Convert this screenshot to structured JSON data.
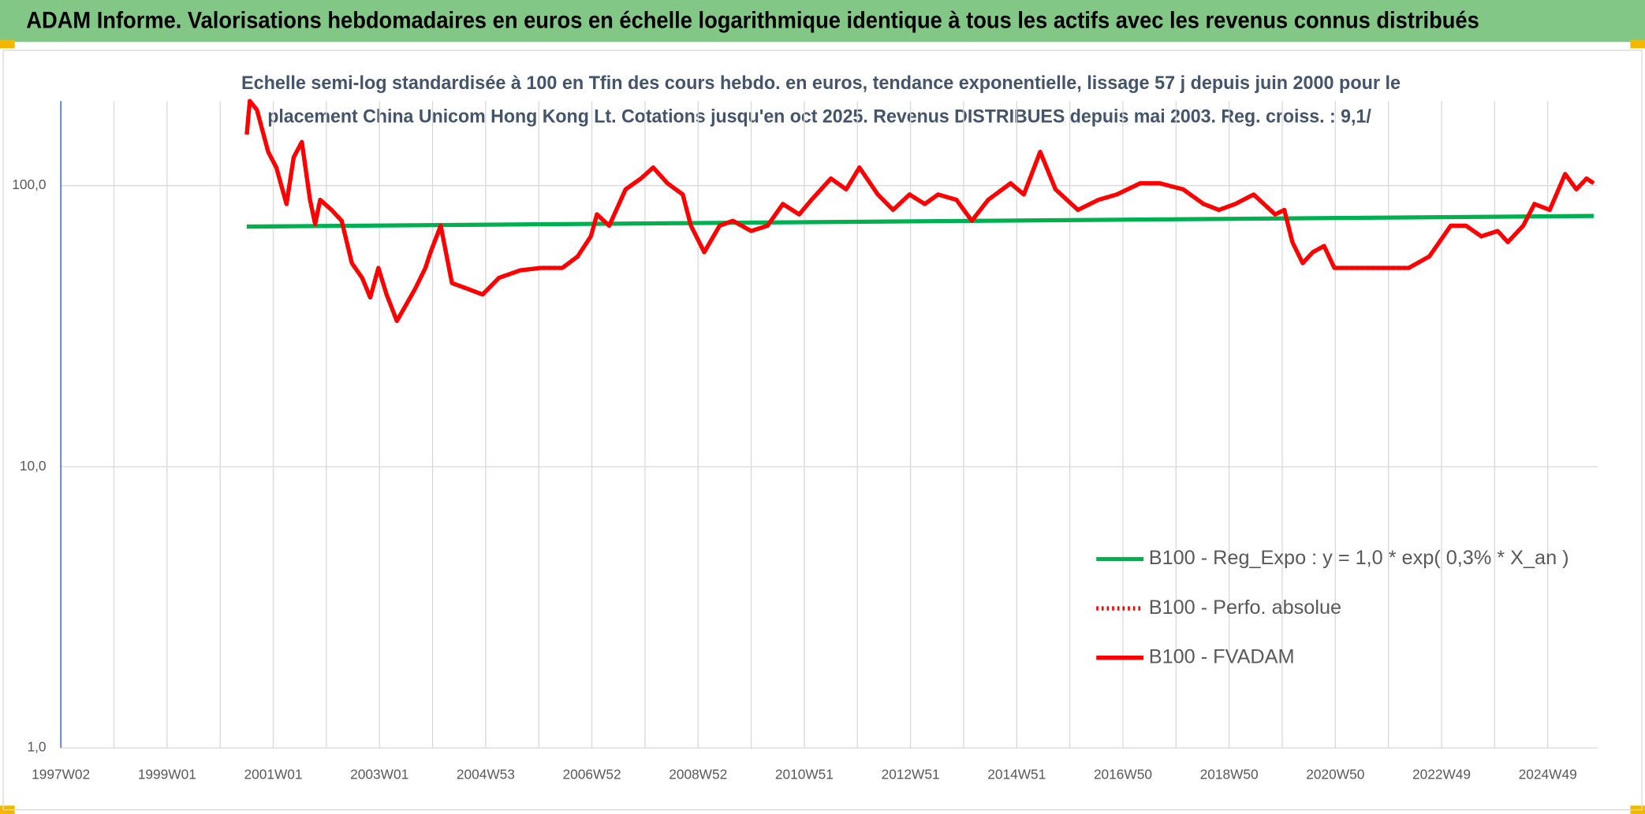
{
  "chart_data": {
    "type": "line",
    "title": "ADAM Informe. Valorisations hebdomadaires en euros en échelle logarithmique identique à tous les actifs avec les revenus connus distribués",
    "subtitle": [
      "Echelle semi-log standardisée à 100 en Tfin des cours hebdo. en euros, tendance exponentielle, lissage 57 j depuis juin 2000 pour le",
      "placement China Unicom Hong Kong Lt. Cotations jusqu'en oct 2025. Revenus DISTRIBUES depuis mai 2003. Reg. croiss. : 9,1/"
    ],
    "log_scale": true,
    "grid": true,
    "ylim": [
      1,
      200
    ],
    "yticks": [
      {
        "value": 1,
        "label": "1,0"
      },
      {
        "value": 10,
        "label": "10,0"
      },
      {
        "value": 100,
        "label": "100,0"
      }
    ],
    "xlim": [
      "1997W02",
      "2025W46"
    ],
    "xticks": [
      "1997W02",
      "1999W01",
      "2001W01",
      "2003W01",
      "2004W53",
      "2006W52",
      "2008W52",
      "2010W51",
      "2012W51",
      "2014W51",
      "2016W50",
      "2018W50",
      "2020W50",
      "2022W49",
      "2024W49"
    ],
    "series": [
      {
        "name": "B100 - Reg_Expo : y = 1,0 * exp( 0,3% *  X_an )",
        "color": "#00b050",
        "style": "solid",
        "x": [
          "2000W27",
          "2025W42"
        ],
        "values": [
          71.5,
          78
        ]
      },
      {
        "name": "B100 - Perfo. absolue",
        "color": "#ff0000",
        "style": "dotted",
        "x": [
          "2000W27",
          "2000W30",
          "2000W37",
          "2000W48",
          "2001W04",
          "2001W14",
          "2001W21",
          "2001W29",
          "2001W37",
          "2001W42",
          "2001W47",
          "2002W06",
          "2002W16",
          "2002W26",
          "2002W36",
          "2002W44",
          "2002W52",
          "2003W08",
          "2003W18",
          "2003W36",
          "2003W46",
          "2003W51",
          "2004W09",
          "2004W20",
          "2004W35",
          "2004W50",
          "2005W13",
          "2005W34",
          "2006W02",
          "2006W23",
          "2006W38",
          "2006W51",
          "2007W05",
          "2007W17",
          "2007W33",
          "2007W48",
          "2008W08",
          "2008W22",
          "2008W37",
          "2008W45",
          "2009W06",
          "2009W21",
          "2009W34",
          "2009W52",
          "2010W15",
          "2010W30",
          "2010W46",
          "2011W06",
          "2011W25",
          "2011W40",
          "2012W01",
          "2012W19",
          "2012W34",
          "2012W50",
          "2013W13",
          "2013W26",
          "2013W44",
          "2014W07",
          "2014W23",
          "2014W45",
          "2015W06",
          "2015W22",
          "2015W37",
          "2016W06",
          "2016W26",
          "2016W44",
          "2017W15",
          "2017W34",
          "2018W05",
          "2018W25",
          "2018W40",
          "2019W04",
          "2019W22",
          "2019W43",
          "2019W52",
          "2020W08",
          "2020W18",
          "2020W28",
          "2020W39",
          "2020W49",
          "2021W12",
          "2021W28",
          "2021W48",
          "2022W17",
          "2022W37",
          "2023W06",
          "2023W21",
          "2023W36",
          "2023W52",
          "2024W10",
          "2024W25",
          "2024W36",
          "2024W51",
          "2025W14",
          "2025W25",
          "2025W35",
          "2025W42"
        ],
        "values": [
          152,
          200,
          186,
          132,
          116,
          86,
          126,
          143,
          89,
          73,
          89,
          82,
          75,
          53,
          47,
          40,
          51,
          41,
          33,
          43,
          51,
          58,
          72,
          45,
          43,
          41,
          47,
          50,
          51,
          51,
          56,
          66,
          79,
          72,
          97,
          106,
          116,
          102,
          93,
          72,
          58,
          72,
          75,
          69,
          72,
          86,
          79,
          89,
          106,
          97,
          116,
          93,
          82,
          93,
          86,
          93,
          89,
          75,
          89,
          102,
          93,
          132,
          97,
          82,
          89,
          93,
          102,
          102,
          97,
          86,
          82,
          86,
          93,
          79,
          82,
          63,
          53,
          58,
          61,
          51,
          51,
          51,
          51,
          51,
          56,
          72,
          72,
          66,
          69,
          63,
          72,
          86,
          82,
          110,
          97,
          106,
          102
        ]
      },
      {
        "name": "B100 - FVADAM",
        "color": "#ff0000",
        "style": "solid",
        "x": [
          "2000W27",
          "2000W30",
          "2000W37",
          "2000W48",
          "2001W04",
          "2001W14",
          "2001W21",
          "2001W29",
          "2001W37",
          "2001W42",
          "2001W47",
          "2002W06",
          "2002W16",
          "2002W26",
          "2002W36",
          "2002W44",
          "2002W52",
          "2003W08",
          "2003W18",
          "2003W36",
          "2003W46",
          "2003W51",
          "2004W09",
          "2004W20",
          "2004W35",
          "2004W50",
          "2005W13",
          "2005W34",
          "2006W02",
          "2006W23",
          "2006W38",
          "2006W51",
          "2007W05",
          "2007W17",
          "2007W33",
          "2007W48",
          "2008W08",
          "2008W22",
          "2008W37",
          "2008W45",
          "2009W06",
          "2009W21",
          "2009W34",
          "2009W52",
          "2010W15",
          "2010W30",
          "2010W46",
          "2011W06",
          "2011W25",
          "2011W40",
          "2012W01",
          "2012W19",
          "2012W34",
          "2012W50",
          "2013W13",
          "2013W26",
          "2013W44",
          "2014W07",
          "2014W23",
          "2014W45",
          "2015W06",
          "2015W22",
          "2015W37",
          "2016W06",
          "2016W26",
          "2016W44",
          "2017W15",
          "2017W34",
          "2018W05",
          "2018W25",
          "2018W40",
          "2019W04",
          "2019W22",
          "2019W43",
          "2019W52",
          "2020W08",
          "2020W18",
          "2020W28",
          "2020W39",
          "2020W49",
          "2021W12",
          "2021W28",
          "2021W48",
          "2022W17",
          "2022W37",
          "2023W06",
          "2023W21",
          "2023W36",
          "2023W52",
          "2024W10",
          "2024W25",
          "2024W36",
          "2024W51",
          "2025W14",
          "2025W25",
          "2025W35",
          "2025W42"
        ],
        "values": [
          152,
          200,
          186,
          132,
          116,
          86,
          126,
          143,
          89,
          73,
          89,
          82,
          75,
          53,
          47,
          40,
          51,
          41,
          33,
          43,
          51,
          58,
          72,
          45,
          43,
          41,
          47,
          50,
          51,
          51,
          56,
          66,
          79,
          72,
          97,
          106,
          116,
          102,
          93,
          72,
          58,
          72,
          75,
          69,
          72,
          86,
          79,
          89,
          106,
          97,
          116,
          93,
          82,
          93,
          86,
          93,
          89,
          75,
          89,
          102,
          93,
          132,
          97,
          82,
          89,
          93,
          102,
          102,
          97,
          86,
          82,
          86,
          93,
          79,
          82,
          63,
          53,
          58,
          61,
          51,
          51,
          51,
          51,
          51,
          56,
          72,
          72,
          66,
          69,
          63,
          72,
          86,
          82,
          110,
          97,
          106,
          102
        ]
      }
    ]
  }
}
